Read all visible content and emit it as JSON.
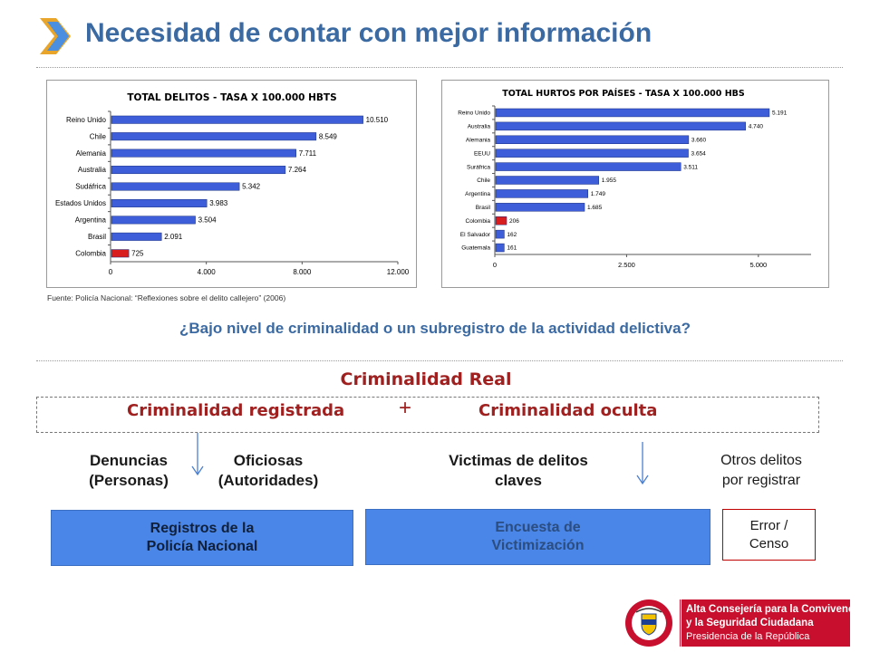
{
  "header": {
    "title": "Necesidad de contar con mejor información"
  },
  "chart_data": [
    {
      "type": "bar",
      "orientation": "horizontal",
      "title": "TOTAL DELITOS - TASA X 100.000 HBTS",
      "categories": [
        "Reino Unido",
        "Chile",
        "Alemania",
        "Australia",
        "Sudáfrica",
        "Estados Unidos",
        "Argentina",
        "Brasil",
        "Colombia"
      ],
      "values": [
        10510,
        8549,
        7711,
        7264,
        5342,
        3983,
        3504,
        2091,
        725
      ],
      "value_labels": [
        "10.510",
        "8.549",
        "7.711",
        "7.264",
        "5.342",
        "3.983",
        "3.504",
        "2.091",
        "725"
      ],
      "xlim": [
        0,
        12000
      ],
      "xticks": [
        0,
        4000,
        8000,
        12000
      ],
      "xtick_labels": [
        "0",
        "4.000",
        "8.000",
        "12.000"
      ],
      "bar_color": "#3d5ed8",
      "highlight": "Colombia",
      "highlight_color": "#d81e1e"
    },
    {
      "type": "bar",
      "orientation": "horizontal",
      "title": "TOTAL HURTOS POR PAÍSES - TASA X 100.000 HBS",
      "categories": [
        "Reino Unido",
        "Australia",
        "Alemania",
        "EEUU",
        "Suráfrica",
        "Chile",
        "Argentina",
        "Brasil",
        "Colombia",
        "El Salvador",
        "Guatemala"
      ],
      "values": [
        5191,
        4740,
        3660,
        3654,
        3511,
        1955,
        1749,
        1685,
        206,
        162,
        161
      ],
      "value_labels": [
        "5.191",
        "4.740",
        "3.660",
        "3.654",
        "3.511",
        "1.955",
        "1.749",
        "1.685",
        "206",
        "162",
        "161"
      ],
      "xlim": [
        0,
        6000
      ],
      "xticks": [
        0,
        2500,
        5000
      ],
      "xtick_labels": [
        "0",
        "2.500",
        "5.000"
      ],
      "bar_color": "#3d5ed8",
      "highlight": "Colombia",
      "highlight_color": "#d81e1e"
    }
  ],
  "source": "Fuente: Policía Nacional: “Reflexiones sobre el delito callejero” (2006)",
  "question": "¿Bajo nivel de criminalidad o un subregistro de la actividad delictiva?",
  "diagram": {
    "real": "Criminalidad Real",
    "registered": "Criminalidad registrada",
    "plus": "+",
    "hidden": "Criminalidad oculta",
    "denuncias": "Denuncias\n(Personas)",
    "oficiosas": "Oficiosas\n(Autoridades)",
    "victimas": "Victimas de delitos\nclaves",
    "otros": "Otros delitos\npor registrar",
    "registros": "Registros de la\nPolicía Nacional",
    "encuesta": "Encuesta de\nVictimización",
    "error": "Error /\nCenso"
  },
  "logo": {
    "line1": "Alta Consejería para la Convivencia",
    "line2": "y la Seguridad Ciudadana",
    "line3": "Presidencia de la República",
    "seal_top": "REPÚBLICA",
    "seal_bottom": "DE COLOMBIA"
  },
  "colors": {
    "title": "#3b6aa3",
    "accent_red": "#a02020",
    "box_blue": "#4a86e8",
    "logo_red": "#c8102e"
  }
}
